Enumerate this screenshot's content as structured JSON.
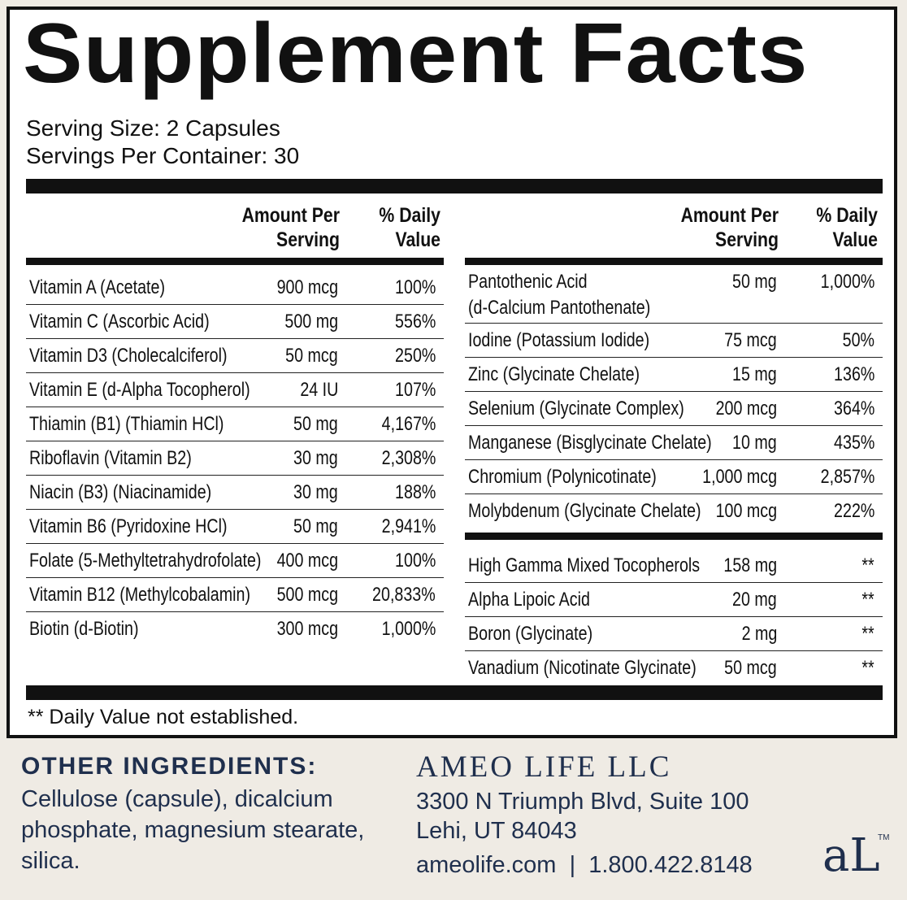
{
  "title": "Supplement Facts",
  "serving_size": "Serving Size: 2 Capsules",
  "servings_per_container": "Servings Per Container: 30",
  "headers": {
    "amount_line1": "Amount Per",
    "amount_line2": "Serving",
    "dv_line1": "% Daily",
    "dv_line2": "Value"
  },
  "left_rows": [
    {
      "name": "Vitamin A (Acetate)",
      "amount": "900 mcg",
      "dv": "100%"
    },
    {
      "name": "Vitamin C (Ascorbic Acid)",
      "amount": "500 mg",
      "dv": "556%"
    },
    {
      "name": "Vitamin D3 (Cholecalciferol)",
      "amount": "50 mcg",
      "dv": "250%"
    },
    {
      "name": "Vitamin E (d-Alpha Tocopherol)",
      "amount": "24 IU",
      "dv": "107%"
    },
    {
      "name": "Thiamin (B1) (Thiamin HCl)",
      "amount": "50 mg",
      "dv": "4,167%"
    },
    {
      "name": "Riboflavin (Vitamin B2)",
      "amount": "30 mg",
      "dv": "2,308%"
    },
    {
      "name": "Niacin (B3) (Niacinamide)",
      "amount": "30 mg",
      "dv": "188%"
    },
    {
      "name": "Vitamin B6 (Pyridoxine HCl)",
      "amount": "50 mg",
      "dv": "2,941%"
    },
    {
      "name": "Folate (5-Methyltetrahydrofolate)",
      "amount": "400 mcg",
      "dv": "100%"
    },
    {
      "name": "Vitamin B12 (Methylcobalamin)",
      "amount": "500 mcg",
      "dv": "20,833%"
    },
    {
      "name": "Biotin (d-Biotin)",
      "amount": "300 mcg",
      "dv": "1,000%"
    }
  ],
  "right_rows": [
    {
      "name": "Pantothenic Acid",
      "name2": "(d-Calcium Pantothenate)",
      "amount": "50 mg",
      "dv": "1,000%"
    },
    {
      "name": "Iodine (Potassium Iodide)",
      "amount": "75 mcg",
      "dv": "50%"
    },
    {
      "name": "Zinc (Glycinate Chelate)",
      "amount": "15 mg",
      "dv": "136%"
    },
    {
      "name": "Selenium (Glycinate Complex)",
      "amount": "200 mcg",
      "dv": "364%"
    },
    {
      "name": "Manganese (Bisglycinate Chelate)",
      "amount": "10 mg",
      "dv": "435%"
    },
    {
      "name": "Chromium (Polynicotinate)",
      "amount": "1,000 mcg",
      "dv": "2,857%"
    },
    {
      "name": "Molybdenum (Glycinate Chelate)",
      "amount": "100 mcg",
      "dv": "222%"
    }
  ],
  "right_rows_2": [
    {
      "name": "High Gamma Mixed Tocopherols",
      "amount": "158 mg",
      "dv": "**"
    },
    {
      "name": "Alpha Lipoic Acid",
      "amount": "20 mg",
      "dv": "**"
    },
    {
      "name": "Boron (Glycinate)",
      "amount": "2 mg",
      "dv": "**"
    },
    {
      "name": "Vanadium (Nicotinate Glycinate)",
      "amount": "50 mcg",
      "dv": "**"
    }
  ],
  "footnote": "** Daily Value not established.",
  "other_ingredients": {
    "title": "OTHER INGREDIENTS:",
    "text": "Cellulose (capsule), dicalcium phosphate, magnesium stearate, silica."
  },
  "company": {
    "name": "AMEO LIFE LLC",
    "address1": "3300 N Triumph Blvd, Suite 100",
    "address2": "Lehi, UT 84043",
    "contact": "ameolife.com  |  1.800.422.8148",
    "logo_text": "aL",
    "logo_tm": "TM"
  },
  "colors": {
    "navy": "#1f2f4d",
    "background": "#efebe4",
    "ink": "#111111"
  }
}
